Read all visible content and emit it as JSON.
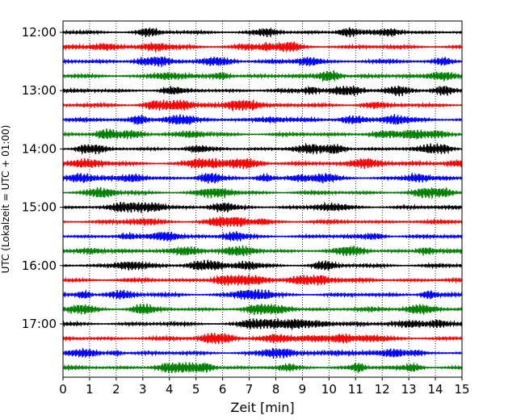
{
  "chart_data": {
    "type": "line",
    "title": "",
    "xlabel": "Zeit  [min]",
    "ylabel": "UTC (Lokalzeit = UTC + 01:00)",
    "xlim": [
      0,
      15
    ],
    "x_ticks": [
      0,
      1,
      2,
      3,
      4,
      5,
      6,
      7,
      8,
      9,
      10,
      11,
      12,
      13,
      14,
      15
    ],
    "y_ticks": [
      {
        "label": "12:00",
        "trace": 0
      },
      {
        "label": "13:00",
        "trace": 4
      },
      {
        "label": "14:00",
        "trace": 8
      },
      {
        "label": "15:00",
        "trace": 12
      },
      {
        "label": "16:00",
        "trace": 16
      },
      {
        "label": "17:00",
        "trace": 20
      }
    ],
    "grid": "vertical dotted",
    "trace_minutes": 15,
    "color_cycle": [
      "#000000",
      "#ff0000",
      "#0000ff",
      "#008000"
    ],
    "traces": [
      {
        "start": "12:00",
        "color": "#000000"
      },
      {
        "start": "12:15",
        "color": "#ff0000"
      },
      {
        "start": "12:30",
        "color": "#0000ff"
      },
      {
        "start": "12:45",
        "color": "#008000"
      },
      {
        "start": "13:00",
        "color": "#000000"
      },
      {
        "start": "13:15",
        "color": "#ff0000"
      },
      {
        "start": "13:30",
        "color": "#0000ff"
      },
      {
        "start": "13:45",
        "color": "#008000"
      },
      {
        "start": "14:00",
        "color": "#000000"
      },
      {
        "start": "14:15",
        "color": "#ff0000"
      },
      {
        "start": "14:30",
        "color": "#0000ff"
      },
      {
        "start": "14:45",
        "color": "#008000"
      },
      {
        "start": "15:00",
        "color": "#000000"
      },
      {
        "start": "15:15",
        "color": "#ff0000"
      },
      {
        "start": "15:30",
        "color": "#0000ff"
      },
      {
        "start": "15:45",
        "color": "#008000"
      },
      {
        "start": "16:00",
        "color": "#000000"
      },
      {
        "start": "16:15",
        "color": "#ff0000"
      },
      {
        "start": "16:30",
        "color": "#0000ff"
      },
      {
        "start": "16:45",
        "color": "#008000"
      },
      {
        "start": "17:00",
        "color": "#000000"
      },
      {
        "start": "17:15",
        "color": "#ff0000"
      },
      {
        "start": "17:30",
        "color": "#0000ff"
      },
      {
        "start": "17:45",
        "color": "#008000"
      }
    ]
  }
}
